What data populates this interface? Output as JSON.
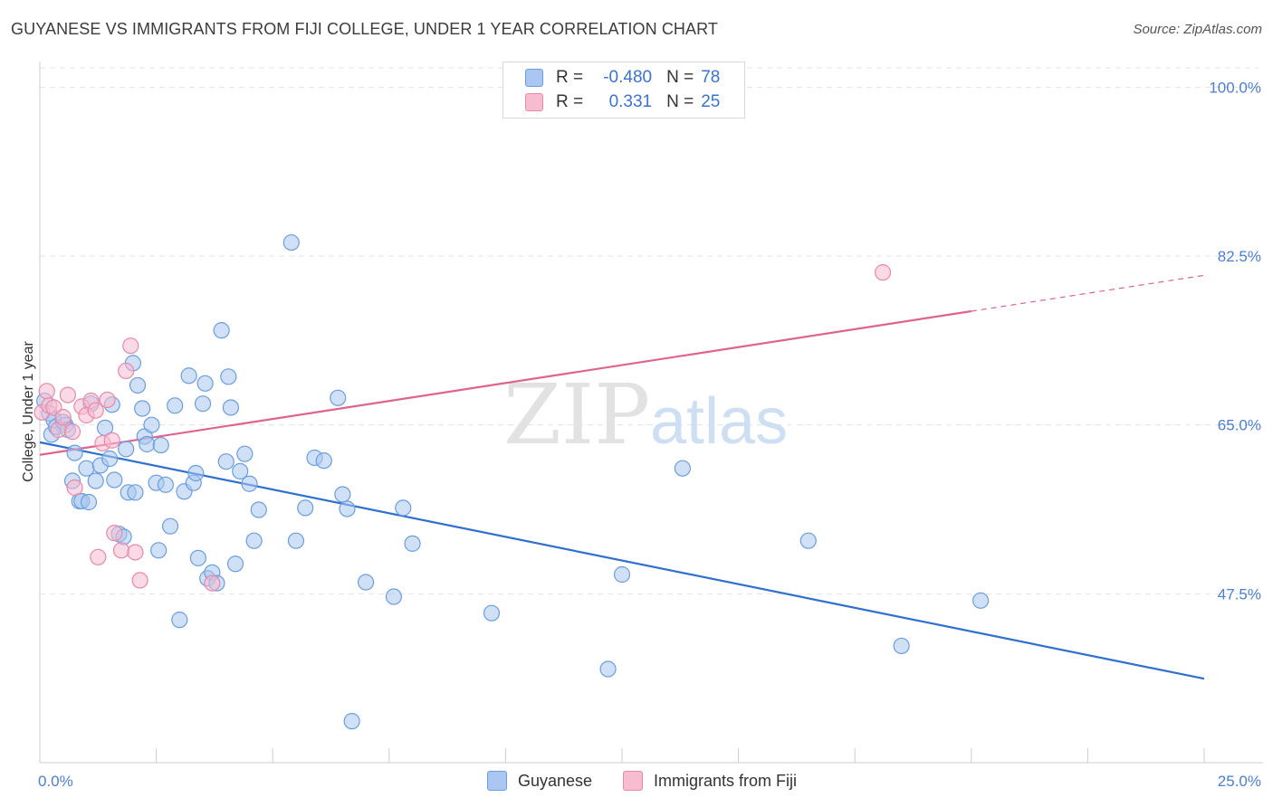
{
  "title": "GUYANESE VS IMMIGRANTS FROM FIJI COLLEGE, UNDER 1 YEAR CORRELATION CHART",
  "source": "Source: ZipAtlas.com",
  "watermark": {
    "zip": "ZIP",
    "atlas": "atlas"
  },
  "legend_top": {
    "rows": [
      {
        "r_label": "R =",
        "r_value": "-0.480",
        "n_label": "N =",
        "n_value": "78",
        "color": "#a9c7f0",
        "edge": "#6a9ee0"
      },
      {
        "r_label": "R =",
        "r_value": "0.331",
        "n_label": "N =",
        "n_value": "25",
        "color": "#f7bcd0",
        "edge": "#e889a8"
      }
    ]
  },
  "legend_bottom": [
    {
      "label": "Guyanese",
      "color": "#a9c7f0",
      "edge": "#6a9ee0"
    },
    {
      "label": "Immigrants from Fiji",
      "color": "#f7bcd0",
      "edge": "#e889a8"
    }
  ],
  "chart_data": {
    "type": "scatter",
    "xlabel": "",
    "ylabel": "College, Under 1 year",
    "xlim": [
      0,
      25
    ],
    "ylim": [
      30,
      102
    ],
    "x_tick_labels": [
      {
        "value": 0,
        "label": "0.0%"
      },
      {
        "value": 25,
        "label": "25.0%"
      }
    ],
    "y_tick_labels": [
      {
        "value": 47.5,
        "label": "47.5%"
      },
      {
        "value": 65.0,
        "label": "65.0%"
      },
      {
        "value": 82.5,
        "label": "82.5%"
      },
      {
        "value": 100.0,
        "label": "100.0%"
      }
    ],
    "x_minor_ticks": [
      0,
      2.5,
      5,
      7.5,
      10,
      12.5,
      15,
      17.5,
      20,
      22.5,
      25
    ],
    "grid": true,
    "series": [
      {
        "name": "Guyanese",
        "color": "#6a9ee0",
        "fill": "#a9c7f0",
        "trend": {
          "x0": 0,
          "y0": 63.2,
          "x1": 25,
          "y1": 38.7,
          "color": "#2f6fd0",
          "dashed_from": null
        },
        "points": [
          [
            0.1,
            67.5
          ],
          [
            0.2,
            66.2
          ],
          [
            0.25,
            64.0
          ],
          [
            0.3,
            65.5
          ],
          [
            0.35,
            64.8
          ],
          [
            0.5,
            65.3
          ],
          [
            0.55,
            65.0
          ],
          [
            0.6,
            64.5
          ],
          [
            0.7,
            59.2
          ],
          [
            0.75,
            62.1
          ],
          [
            0.85,
            57.1
          ],
          [
            0.9,
            57.1
          ],
          [
            1.0,
            60.5
          ],
          [
            1.05,
            57.0
          ],
          [
            1.1,
            67.2
          ],
          [
            1.2,
            59.2
          ],
          [
            1.3,
            60.8
          ],
          [
            1.4,
            64.7
          ],
          [
            1.5,
            61.5
          ],
          [
            1.55,
            67.1
          ],
          [
            1.6,
            59.3
          ],
          [
            1.7,
            53.7
          ],
          [
            1.8,
            53.4
          ],
          [
            1.85,
            62.5
          ],
          [
            1.9,
            58.0
          ],
          [
            2.0,
            71.4
          ],
          [
            2.05,
            58.0
          ],
          [
            2.1,
            69.1
          ],
          [
            2.2,
            66.7
          ],
          [
            2.25,
            63.8
          ],
          [
            2.3,
            63.0
          ],
          [
            2.4,
            65.0
          ],
          [
            2.5,
            59.0
          ],
          [
            2.55,
            52.0
          ],
          [
            2.6,
            62.9
          ],
          [
            2.7,
            58.8
          ],
          [
            2.8,
            54.5
          ],
          [
            2.9,
            67.0
          ],
          [
            3.0,
            44.8
          ],
          [
            3.1,
            58.1
          ],
          [
            3.2,
            70.1
          ],
          [
            3.3,
            59.0
          ],
          [
            3.35,
            60.0
          ],
          [
            3.4,
            51.2
          ],
          [
            3.5,
            67.2
          ],
          [
            3.55,
            69.3
          ],
          [
            3.6,
            49.1
          ],
          [
            3.7,
            49.7
          ],
          [
            3.8,
            48.6
          ],
          [
            3.9,
            74.8
          ],
          [
            4.0,
            61.2
          ],
          [
            4.05,
            70.0
          ],
          [
            4.1,
            66.8
          ],
          [
            4.2,
            50.6
          ],
          [
            4.3,
            60.2
          ],
          [
            4.4,
            62.0
          ],
          [
            4.5,
            58.9
          ],
          [
            4.6,
            53.0
          ],
          [
            4.7,
            56.2
          ],
          [
            5.4,
            83.9
          ],
          [
            5.5,
            53.0
          ],
          [
            5.7,
            56.4
          ],
          [
            5.9,
            61.6
          ],
          [
            6.1,
            61.3
          ],
          [
            6.4,
            67.8
          ],
          [
            6.5,
            57.8
          ],
          [
            6.6,
            56.3
          ],
          [
            6.7,
            34.3
          ],
          [
            7.0,
            48.7
          ],
          [
            7.6,
            47.2
          ],
          [
            7.8,
            56.4
          ],
          [
            8.0,
            52.7
          ],
          [
            9.7,
            45.5
          ],
          [
            12.2,
            39.7
          ],
          [
            12.5,
            49.5
          ],
          [
            13.8,
            60.5
          ],
          [
            16.5,
            53.0
          ],
          [
            20.2,
            46.8
          ],
          [
            18.5,
            42.1
          ]
        ]
      },
      {
        "name": "Immigrants from Fiji",
        "color": "#e889a8",
        "fill": "#f7bcd0",
        "trend": {
          "x0": 0,
          "y0": 61.9,
          "x1": 25,
          "y1": 80.5,
          "color": "#e0628e",
          "dashed_from": 20
        },
        "points": [
          [
            0.05,
            66.3
          ],
          [
            0.15,
            68.5
          ],
          [
            0.2,
            67.0
          ],
          [
            0.3,
            66.8
          ],
          [
            0.4,
            64.5
          ],
          [
            0.5,
            65.8
          ],
          [
            0.6,
            68.1
          ],
          [
            0.7,
            64.3
          ],
          [
            0.75,
            58.5
          ],
          [
            0.9,
            66.9
          ],
          [
            1.0,
            66.0
          ],
          [
            1.1,
            67.5
          ],
          [
            1.2,
            66.5
          ],
          [
            1.25,
            51.3
          ],
          [
            1.35,
            63.1
          ],
          [
            1.45,
            67.6
          ],
          [
            1.55,
            63.4
          ],
          [
            1.6,
            53.8
          ],
          [
            1.75,
            52.0
          ],
          [
            1.85,
            70.6
          ],
          [
            1.95,
            73.2
          ],
          [
            2.05,
            51.8
          ],
          [
            2.15,
            48.9
          ],
          [
            3.7,
            48.6
          ],
          [
            18.1,
            80.8
          ]
        ]
      }
    ]
  }
}
